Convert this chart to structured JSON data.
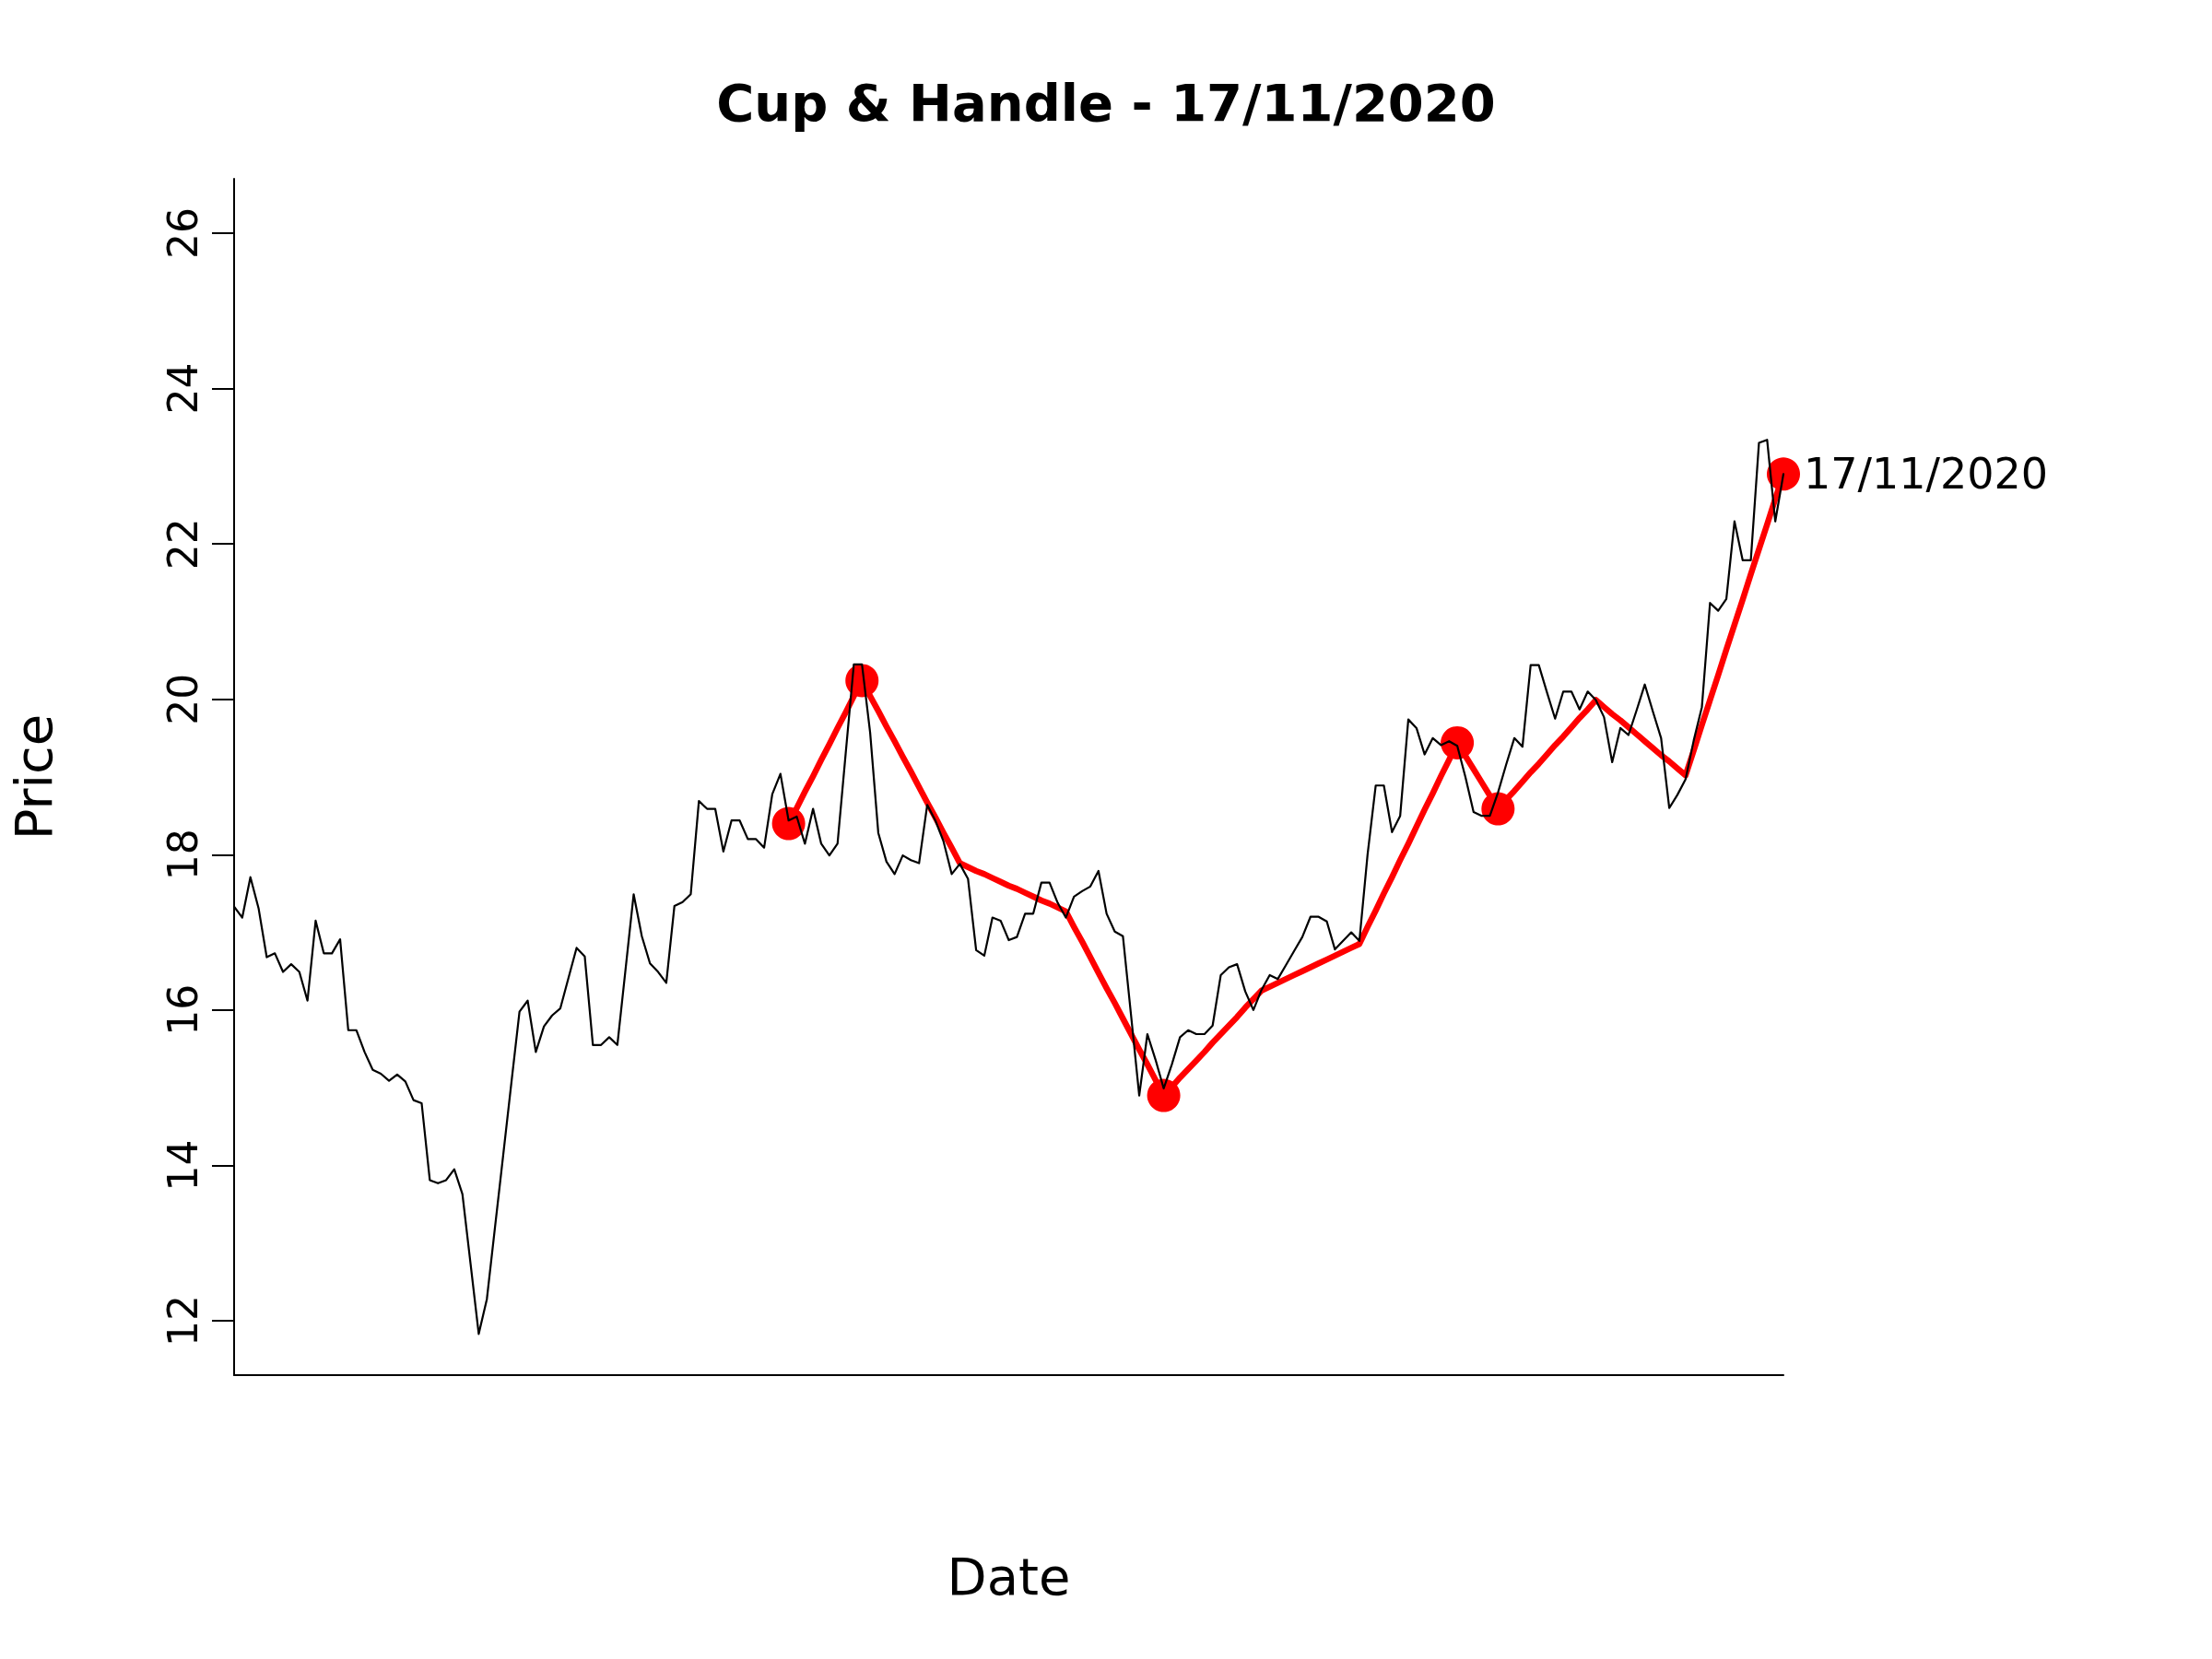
{
  "chart_data": {
    "type": "line",
    "title": "Cup & Handle - 17/11/2020",
    "xlabel": "Date",
    "ylabel": "Price",
    "categories": [
      null,
      null,
      null,
      null,
      null,
      null,
      null,
      null,
      null,
      null,
      null,
      null,
      null,
      null,
      null,
      null,
      null,
      null,
      null,
      null,
      null,
      null,
      null,
      null,
      null,
      null,
      null,
      null,
      null,
      null,
      null,
      null,
      null,
      null,
      null,
      null,
      null,
      null,
      null,
      null,
      null,
      null,
      null,
      null,
      null,
      null,
      null,
      null,
      null,
      null,
      null,
      null,
      null,
      null,
      null,
      null,
      null,
      null,
      null,
      null,
      null,
      null,
      null,
      null,
      null,
      null,
      null,
      null,
      null,
      null,
      null,
      null,
      null,
      null,
      null,
      null,
      null,
      null,
      null,
      null,
      null,
      null,
      null,
      null,
      null,
      null,
      null,
      null,
      null,
      null,
      null,
      null,
      null,
      null,
      null,
      null,
      null,
      null,
      null,
      null,
      null,
      null,
      null,
      null,
      null,
      null,
      null,
      null,
      null,
      null,
      null,
      null,
      null,
      null,
      null,
      null,
      null,
      null,
      null,
      null,
      null,
      null,
      null,
      null,
      null,
      null,
      null,
      null,
      null,
      null,
      null,
      null,
      null,
      null,
      null,
      null,
      null,
      null,
      null,
      null,
      null,
      null,
      null,
      null,
      null,
      null,
      null,
      null,
      null,
      null,
      null,
      null,
      null,
      null,
      null,
      null,
      null,
      null,
      null,
      null,
      null,
      null,
      null,
      null,
      null,
      null,
      null,
      null,
      null,
      null,
      null,
      null,
      null,
      null,
      null,
      null,
      null,
      null,
      null,
      null,
      null,
      null,
      null,
      null,
      null,
      null,
      null,
      null,
      null,
      null,
      null
    ],
    "ylim": [
      11.3,
      26.7
    ],
    "yticks": [
      12,
      14,
      16,
      18,
      20,
      22,
      24,
      26
    ],
    "tick_labels": "y",
    "marker": "none",
    "line_style": "solid",
    "annotations": [
      "17/11/2020"
    ],
    "series": [
      {
        "color": "#000000",
        "values": [
          17.33,
          17.19,
          17.71,
          17.31,
          16.68,
          16.73,
          16.49,
          16.59,
          16.49,
          16.12,
          17.15,
          16.73,
          16.73,
          16.91,
          15.74,
          15.74,
          15.46,
          15.23,
          15.18,
          15.09,
          15.17,
          15.08,
          14.84,
          14.8,
          13.81,
          13.77,
          13.81,
          13.95,
          13.63,
          12.73,
          11.83,
          12.28,
          13.21,
          14.13,
          15.06,
          15.98,
          16.12,
          15.46,
          15.79,
          15.93,
          16.02,
          16.41,
          16.8,
          16.69,
          15.55,
          15.55,
          15.65,
          15.55,
          16.52,
          17.49,
          16.95,
          16.6,
          16.49,
          16.35,
          17.34,
          17.39,
          17.49,
          18.69,
          18.59,
          18.59,
          18.04,
          18.44,
          18.44,
          18.2,
          18.2,
          18.09,
          18.78,
          19.04,
          18.44,
          18.49,
          18.14,
          18.59,
          18.14,
          17.99,
          18.14,
          19.3,
          20.45,
          20.45,
          19.57,
          18.28,
          17.91,
          17.75,
          17.99,
          17.93,
          17.89,
          18.64,
          18.44,
          18.17,
          17.75,
          17.88,
          17.69,
          16.77,
          16.7,
          17.19,
          17.15,
          16.9,
          16.94,
          17.24,
          17.24,
          17.64,
          17.64,
          17.38,
          17.19,
          17.46,
          17.53,
          17.59,
          17.79,
          17.24,
          17.01,
          16.95,
          15.93,
          14.9,
          15.69,
          15.36,
          14.99,
          15.3,
          15.65,
          15.74,
          15.69,
          15.69,
          15.8,
          16.45,
          16.55,
          16.59,
          16.24,
          16.0,
          16.26,
          16.45,
          16.4,
          16.58,
          16.76,
          16.94,
          17.2,
          17.2,
          17.14,
          16.78,
          16.89,
          17.0,
          16.89,
          18.0,
          18.89,
          18.89,
          18.29,
          18.5,
          19.74,
          19.63,
          19.29,
          19.5,
          19.41,
          19.46,
          19.4,
          19.0,
          18.55,
          18.5,
          18.5,
          18.8,
          19.16,
          19.5,
          19.39,
          20.44,
          20.44,
          20.09,
          19.75,
          20.1,
          20.1,
          19.87,
          20.1,
          19.99,
          19.77,
          19.19,
          19.63,
          19.54,
          19.86,
          20.19,
          19.84,
          19.5,
          18.6,
          18.77,
          18.97,
          19.47,
          19.9,
          21.24,
          21.14,
          21.29,
          22.29,
          21.79,
          21.79,
          23.3,
          23.34,
          22.29,
          22.9
        ]
      },
      {
        "color": "#ff0000",
        "values": [
          null,
          null,
          null,
          null,
          null,
          null,
          null,
          null,
          null,
          null,
          null,
          null,
          null,
          null,
          null,
          null,
          null,
          null,
          null,
          null,
          null,
          null,
          null,
          null,
          null,
          null,
          null,
          null,
          null,
          null,
          null,
          null,
          null,
          null,
          null,
          null,
          null,
          null,
          null,
          null,
          null,
          null,
          null,
          null,
          null,
          null,
          null,
          null,
          null,
          null,
          null,
          null,
          null,
          null,
          null,
          null,
          null,
          null,
          null,
          null,
          null,
          null,
          null,
          null,
          null,
          null,
          null,
          null,
          18.4,
          18.6,
          18.81,
          19.01,
          19.22,
          19.42,
          19.63,
          19.83,
          20.04,
          20.24,
          20.04,
          19.85,
          19.65,
          19.46,
          19.26,
          19.07,
          18.87,
          18.67,
          18.48,
          18.28,
          18.09,
          17.89,
          17.84,
          17.79,
          17.75,
          17.7,
          17.65,
          17.6,
          17.56,
          17.51,
          17.46,
          17.41,
          17.37,
          17.32,
          17.27,
          17.07,
          16.88,
          16.68,
          16.48,
          16.28,
          16.09,
          15.89,
          15.69,
          15.49,
          15.3,
          15.1,
          14.9,
          15.01,
          15.13,
          15.24,
          15.35,
          15.46,
          15.58,
          15.69,
          15.8,
          15.91,
          16.03,
          16.14,
          16.25,
          16.3,
          16.35,
          16.4,
          16.45,
          16.5,
          16.55,
          16.6,
          16.65,
          16.7,
          16.75,
          16.8,
          16.85,
          17.07,
          17.28,
          17.5,
          17.71,
          17.93,
          18.14,
          18.36,
          18.58,
          18.79,
          19.01,
          19.22,
          19.44,
          19.27,
          19.1,
          18.93,
          18.76,
          18.59,
          18.71,
          18.82,
          18.94,
          19.06,
          19.17,
          19.29,
          19.41,
          19.52,
          19.64,
          19.76,
          19.87,
          19.99,
          19.9,
          19.81,
          19.73,
          19.64,
          19.55,
          19.46,
          19.37,
          19.28,
          19.2,
          19.11,
          19.02,
          19.34,
          19.67,
          19.99,
          20.31,
          20.64,
          20.96,
          21.28,
          21.61,
          21.93,
          22.25,
          22.58,
          22.9
        ]
      },
      {
        "type": "scatter",
        "marker": "circle",
        "color": "#ff0000",
        "values": [
          null,
          null,
          null,
          null,
          null,
          null,
          null,
          null,
          null,
          null,
          null,
          null,
          null,
          null,
          null,
          null,
          null,
          null,
          null,
          null,
          null,
          null,
          null,
          null,
          null,
          null,
          null,
          null,
          null,
          null,
          null,
          null,
          null,
          null,
          null,
          null,
          null,
          null,
          null,
          null,
          null,
          null,
          null,
          null,
          null,
          null,
          null,
          null,
          null,
          null,
          null,
          null,
          null,
          null,
          null,
          null,
          null,
          null,
          null,
          null,
          null,
          null,
          null,
          null,
          null,
          null,
          null,
          null,
          18.4,
          null,
          null,
          null,
          null,
          null,
          null,
          null,
          null,
          20.24,
          null,
          null,
          null,
          null,
          null,
          null,
          null,
          null,
          null,
          null,
          null,
          null,
          null,
          null,
          null,
          null,
          null,
          null,
          null,
          null,
          null,
          null,
          null,
          null,
          null,
          null,
          null,
          null,
          null,
          null,
          null,
          null,
          null,
          null,
          null,
          null,
          14.9,
          null,
          null,
          null,
          null,
          null,
          null,
          null,
          null,
          null,
          null,
          null,
          null,
          null,
          null,
          null,
          null,
          null,
          null,
          null,
          null,
          null,
          null,
          null,
          null,
          null,
          null,
          null,
          null,
          null,
          null,
          null,
          null,
          null,
          null,
          null,
          19.44,
          null,
          null,
          null,
          null,
          18.59,
          null,
          null,
          null,
          null,
          null,
          null,
          null,
          null,
          null,
          null,
          null,
          null,
          null,
          null,
          null,
          null,
          null,
          null,
          null,
          null,
          null,
          null,
          null,
          null,
          null,
          null,
          null,
          null,
          null,
          null,
          null,
          null,
          null,
          null,
          22.9
        ]
      }
    ]
  }
}
